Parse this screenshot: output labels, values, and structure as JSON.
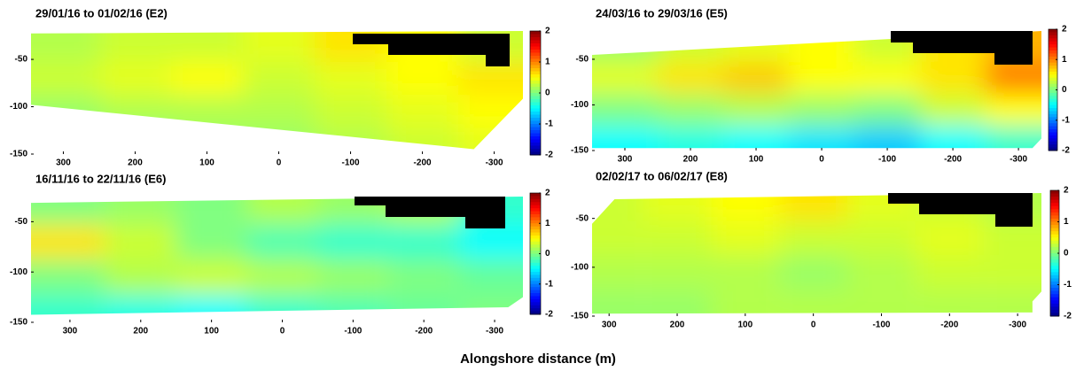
{
  "chart_data": [
    {
      "type": "heatmap",
      "title": "29/01/16 to 01/02/16   (E2)",
      "x": [
        300,
        200,
        100,
        0,
        -100,
        -200,
        -300
      ],
      "y": [
        -35,
        -70,
        -105,
        -140
      ],
      "z": [
        [
          0.2,
          0.3,
          0.3,
          0.4,
          0.6,
          0.5,
          0.3
        ],
        [
          0.3,
          0.4,
          0.5,
          0.3,
          0.4,
          0.5,
          0.6
        ],
        [
          0.1,
          0.2,
          0.2,
          0.2,
          0.3,
          0.4,
          0.5
        ],
        [
          0,
          0,
          0.1,
          0.1,
          0.2,
          0.3,
          0.4
        ]
      ],
      "xlim": [
        345,
        -340
      ],
      "ylim": [
        -150,
        -20
      ],
      "xticks": [
        300,
        200,
        100,
        0,
        -100,
        -200,
        -300
      ],
      "yticks": [
        -50,
        -100,
        -150
      ],
      "clim": [
        -2,
        2
      ],
      "cticks": [
        2,
        1,
        0,
        -1,
        -2
      ],
      "colormap": "jet"
    },
    {
      "type": "heatmap",
      "title": "24/03/16 to 29/03/16   (E5)",
      "x": [
        300,
        200,
        100,
        0,
        -100,
        -200,
        -300
      ],
      "y": [
        -35,
        -70,
        -105,
        -140
      ],
      "z": [
        [
          0.1,
          0.3,
          0.4,
          0.5,
          0.3,
          0.6,
          0.8
        ],
        [
          0.4,
          0.6,
          0.7,
          0.5,
          0.5,
          0.6,
          1.0
        ],
        [
          0,
          0.1,
          0.2,
          0.1,
          0,
          0.3,
          0.5
        ],
        [
          -0.5,
          -0.4,
          -0.5,
          -0.6,
          -0.7,
          -0.5,
          -0.3
        ]
      ],
      "xlim": [
        350,
        -335
      ],
      "ylim": [
        -150,
        -19
      ],
      "xticks": [
        300,
        200,
        100,
        0,
        -100,
        -200,
        -300
      ],
      "yticks": [
        -50,
        -100,
        -150
      ],
      "clim": [
        -2,
        2
      ],
      "cticks": [
        2,
        1,
        0,
        -1,
        -2
      ],
      "colormap": "jet"
    },
    {
      "type": "heatmap",
      "title": "16/11/16 to 22/11/16   (E6)",
      "x": [
        300,
        200,
        100,
        0,
        -100,
        -200,
        -300
      ],
      "y": [
        -35,
        -70,
        -105,
        -140
      ],
      "z": [
        [
          0,
          0.1,
          0,
          0.2,
          0.1,
          0.2,
          -0.3
        ],
        [
          0.6,
          0.3,
          0,
          -0.2,
          -0.3,
          -0.3,
          -0.5
        ],
        [
          0,
          0.2,
          0.3,
          0.2,
          0.1,
          0,
          -0.1
        ],
        [
          -0.3,
          -0.4,
          -0.5,
          -0.3,
          -0.2,
          -0.1,
          0
        ]
      ],
      "xlim": [
        355,
        -340
      ],
      "ylim": [
        -150,
        -25
      ],
      "xticks": [
        300,
        200,
        100,
        0,
        -100,
        -200,
        -300
      ],
      "yticks": [
        -50,
        -100,
        -150
      ],
      "clim": [
        -2,
        2
      ],
      "cticks": [
        2,
        1,
        0,
        -1,
        -2
      ],
      "colormap": "jet"
    },
    {
      "type": "heatmap",
      "title": "02/02/17 to 06/02/17   (E8)",
      "x": [
        300,
        200,
        100,
        0,
        -100,
        -200,
        -300
      ],
      "y": [
        -35,
        -70,
        -105,
        -140
      ],
      "z": [
        [
          0.3,
          0.4,
          0.5,
          0.6,
          0.4,
          0.3,
          0.2
        ],
        [
          0.3,
          0.3,
          0.4,
          0.3,
          0.3,
          0.4,
          0.3
        ],
        [
          0.2,
          0.2,
          0.2,
          0.1,
          0.2,
          0.3,
          0.3
        ],
        [
          0.1,
          0.1,
          0.2,
          0.2,
          0.2,
          0.2,
          0.2
        ]
      ],
      "xlim": [
        325,
        -335
      ],
      "ylim": [
        -150,
        -24
      ],
      "xticks": [
        300,
        200,
        100,
        0,
        -100,
        -200,
        -300
      ],
      "yticks": [
        -50,
        -100,
        -150
      ],
      "clim": [
        -2,
        2
      ],
      "cticks": [
        2,
        1,
        0,
        -1,
        -2
      ],
      "colormap": "jet"
    }
  ],
  "xlabel": "Alongshore distance (m)"
}
